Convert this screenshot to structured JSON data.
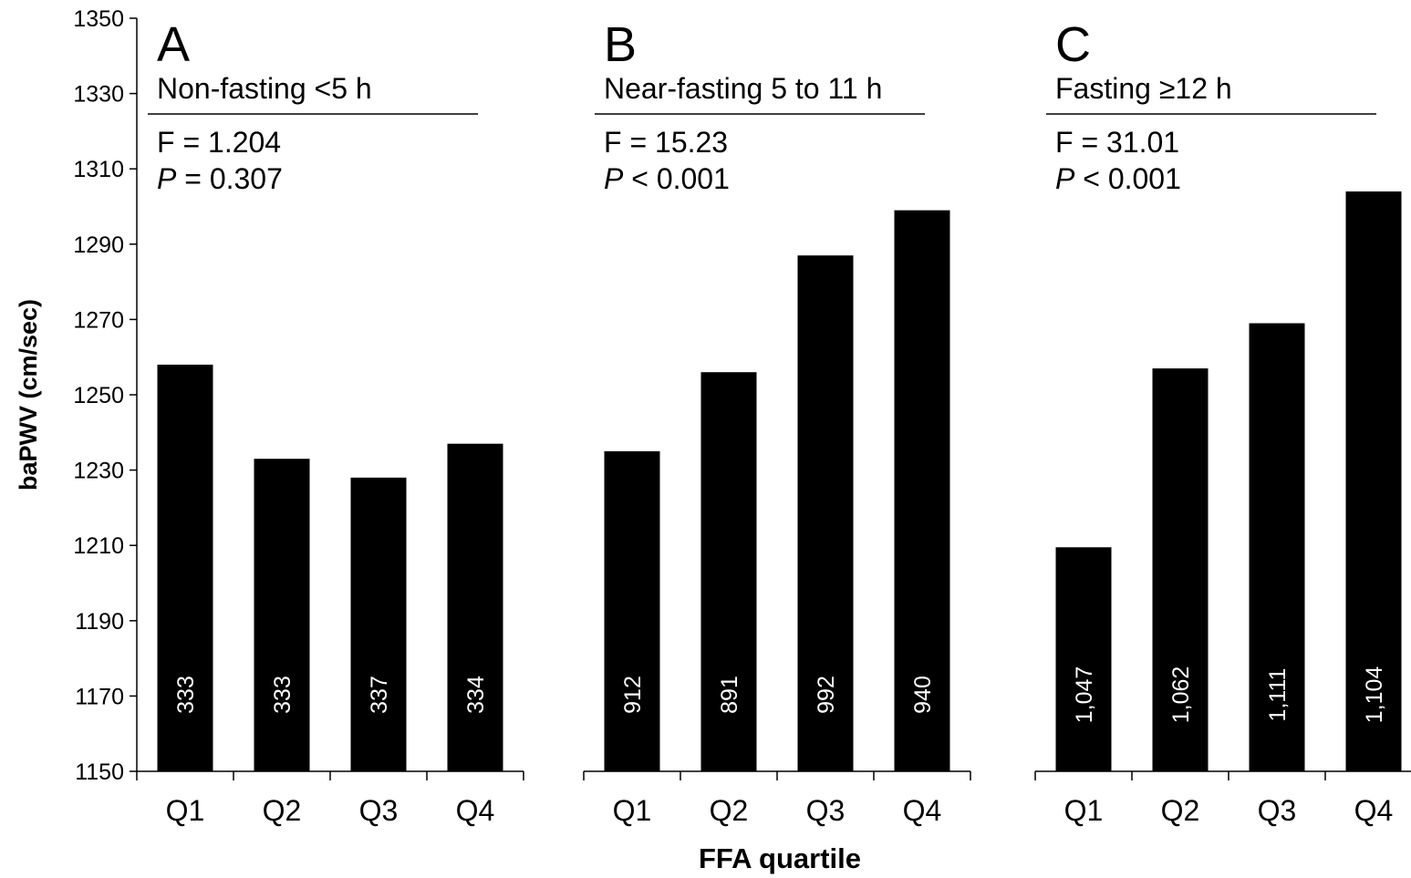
{
  "chart_data": {
    "type": "bar",
    "ylabel": "baPWV (cm/sec)",
    "xlabel": "FFA quartile",
    "ylim": [
      1150,
      1350
    ],
    "yticks": [
      1150,
      1170,
      1190,
      1210,
      1230,
      1250,
      1270,
      1290,
      1310,
      1330,
      1350
    ],
    "bar_color": "#000000",
    "panels": [
      {
        "letter": "A",
        "subtitle": "Non-fasting <5 h",
        "f_stat": "F = 1.204",
        "p_symbol": "P",
        "p_rest": " = 0.307",
        "categories": [
          "Q1",
          "Q2",
          "Q3",
          "Q4"
        ],
        "values": [
          1258,
          1233,
          1228,
          1237
        ],
        "n_labels": [
          "333",
          "333",
          "337",
          "334"
        ]
      },
      {
        "letter": "B",
        "subtitle": "Near-fasting 5 to 11 h",
        "f_stat": "F = 15.23",
        "p_symbol": "P",
        "p_rest": " < 0.001",
        "categories": [
          "Q1",
          "Q2",
          "Q3",
          "Q4"
        ],
        "values": [
          1235,
          1256,
          1287,
          1299
        ],
        "n_labels": [
          "912",
          "891",
          "992",
          "940"
        ]
      },
      {
        "letter": "C",
        "subtitle": "Fasting ≥12 h",
        "f_stat": "F = 31.01",
        "p_symbol": "P",
        "p_rest": " < 0.001",
        "categories": [
          "Q1",
          "Q2",
          "Q3",
          "Q4"
        ],
        "values": [
          1209.5,
          1257,
          1269,
          1304
        ],
        "n_labels": [
          "1,047",
          "1,062",
          "1,111",
          "1,104"
        ]
      }
    ]
  }
}
